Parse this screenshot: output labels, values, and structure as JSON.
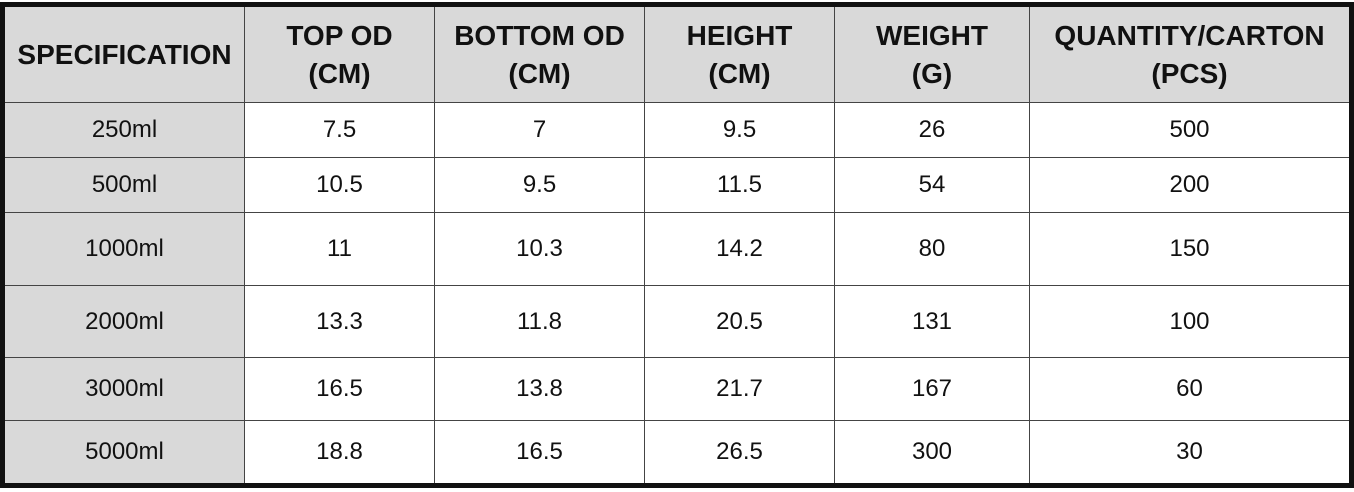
{
  "table": {
    "header": [
      [
        "SPECIFICATION"
      ],
      [
        "TOP OD",
        "(CM)"
      ],
      [
        "BOTTOM OD",
        "(CM)"
      ],
      [
        "HEIGHT",
        "(CM)"
      ],
      [
        "WEIGHT",
        "(G)"
      ],
      [
        "QUANTITY/CARTON",
        "(PCS)"
      ]
    ],
    "rows": [
      [
        "250ml",
        "7.5",
        "7",
        "9.5",
        "26",
        "500"
      ],
      [
        "500ml",
        "10.5",
        "9.5",
        "11.5",
        "54",
        "200"
      ],
      [
        "1000ml",
        "11",
        "10.3",
        "14.2",
        "80",
        "150"
      ],
      [
        "2000ml",
        "13.3",
        "11.8",
        "20.5",
        "131",
        "100"
      ],
      [
        "3000ml",
        "16.5",
        "13.8",
        "21.7",
        "167",
        "60"
      ],
      [
        "5000ml",
        "18.8",
        "16.5",
        "26.5",
        "300",
        "30"
      ]
    ]
  }
}
